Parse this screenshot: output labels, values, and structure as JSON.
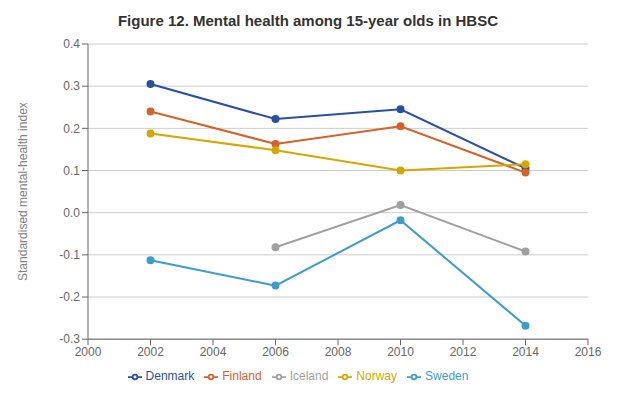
{
  "chart_data": {
    "type": "line",
    "title": "Figure 12. Mental health among 15-year olds in HBSC",
    "y_label": "Standardised mental-health index",
    "x": [
      2002,
      2006,
      2010,
      2014
    ],
    "series": [
      {
        "name": "Denmark",
        "color": "#2B4FA0",
        "marker": "circle",
        "values": [
          0.305,
          0.222,
          0.245,
          0.105
        ]
      },
      {
        "name": "Finland",
        "color": "#D4622A",
        "marker": "circle",
        "values": [
          0.24,
          0.163,
          0.205,
          0.095
        ]
      },
      {
        "name": "Iceland",
        "color": "#A0A0A0",
        "marker": "circle",
        "values": [
          null,
          -0.082,
          0.018,
          -0.092
        ]
      },
      {
        "name": "Norway",
        "color": "#D4A800",
        "marker": "circle",
        "values": [
          0.188,
          0.148,
          0.1,
          0.115
        ]
      },
      {
        "name": "Sweden",
        "color": "#3E9DC8",
        "marker": "circle",
        "values": [
          -0.113,
          -0.173,
          -0.018,
          -0.268
        ]
      }
    ],
    "xlim": [
      2000,
      2016
    ],
    "xticks": [
      2000,
      2002,
      2004,
      2006,
      2008,
      2010,
      2012,
      2014,
      2016
    ],
    "ylim": [
      -0.3,
      0.4
    ],
    "yticks": [
      -0.3,
      -0.2,
      -0.1,
      {
        "value": 0,
        "label": "0.0"
      },
      0.1,
      0.2,
      0.3,
      0.4
    ],
    "grid": true,
    "legend": "bottom"
  }
}
